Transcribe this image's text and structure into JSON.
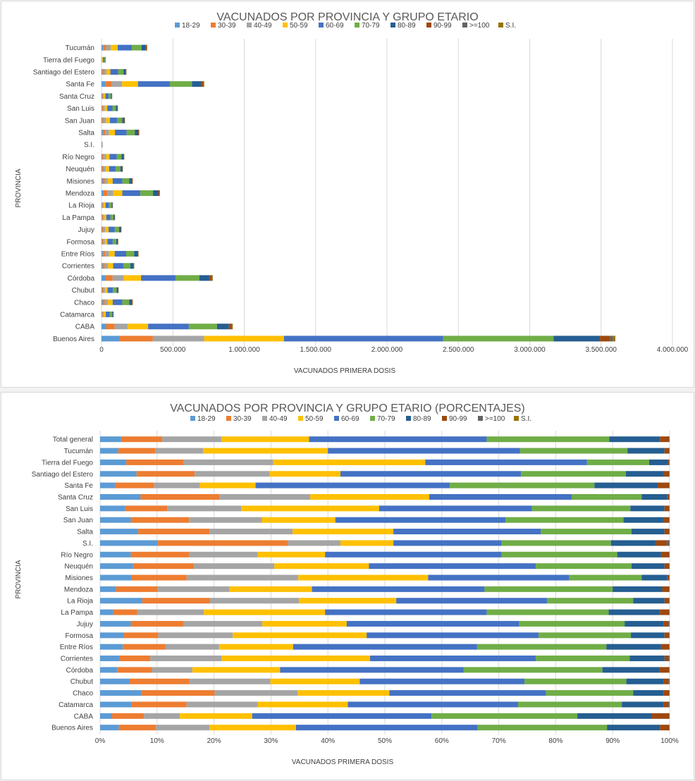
{
  "colors": {
    "series": [
      "#5b9bd5",
      "#ed7d31",
      "#a5a5a5",
      "#ffc000",
      "#4472c4",
      "#70ad47",
      "#255e91",
      "#9e480e",
      "#636363",
      "#997300"
    ],
    "grid": "#d9d9d9",
    "text": "#404040",
    "title": "#595959"
  },
  "chart_data": [
    {
      "type": "bar",
      "orientation": "horizontal",
      "stacked": true,
      "title": "VACUNADOS POR PROVINCIA Y GRUPO ETARIO",
      "xlabel": "VACUNADOS  PRIMERA  DOSIS",
      "ylabel": "PROVINCIA",
      "legend_position": "top",
      "grid": true,
      "xlim": [
        0,
        4000000
      ],
      "xticks": [
        0,
        500000,
        1000000,
        1500000,
        2000000,
        2500000,
        3000000,
        3500000,
        4000000
      ],
      "xtick_labels": [
        "0",
        "500.000",
        "1.000.000",
        "1.500.000",
        "2.000.000",
        "2.500.000",
        "3.000.000",
        "3.500.000",
        "4.000.000"
      ],
      "series_names": [
        "18-29",
        "30-39",
        "40-49",
        "50-59",
        "60-69",
        "70-79",
        "80-89",
        "90-99",
        ">=100",
        "S.I."
      ],
      "categories": [
        "Buenos Aires",
        "CABA",
        "Catamarca",
        "Chaco",
        "Chubut",
        "Córdoba",
        "Corrientes",
        "Entre Ríos",
        "Formosa",
        "Jujuy",
        "La Pampa",
        "La Rioja",
        "Mendoza",
        "Misiones",
        "Neuquén",
        "Río Negro",
        "S.I.",
        "Salta",
        "San Juan",
        "San Luis",
        "Santa Cruz",
        "Santa Fe",
        "Santiago del Estero",
        "Tierra del Fuego",
        "Tucumán"
      ],
      "totals": [
        3600000,
        920000,
        85000,
        220000,
        120000,
        780000,
        230000,
        260000,
        118000,
        140000,
        95000,
        80000,
        410000,
        220000,
        150000,
        160000,
        8000,
        265000,
        165000,
        115000,
        75000,
        720000,
        175000,
        30000,
        320000
      ]
    },
    {
      "type": "bar",
      "orientation": "horizontal",
      "stacked": true,
      "percent": true,
      "title": "VACUNADOS POR PROVINCIA Y GRUPO ETARIO (PORCENTAJES)",
      "xlabel": "VACUNADOS  PRIMERA  DOSIS",
      "ylabel": "PROVINCIA",
      "legend_position": "top",
      "grid": true,
      "xlim": [
        0,
        100
      ],
      "xticks": [
        0,
        10,
        20,
        30,
        40,
        50,
        60,
        70,
        80,
        90,
        100
      ],
      "xtick_labels": [
        "0%",
        "10%",
        "20%",
        "30%",
        "40%",
        "50%",
        "60%",
        "70%",
        "80%",
        "90%",
        "100%"
      ],
      "series_names": [
        "18-29",
        "30-39",
        "40-49",
        "50-59",
        "60-69",
        "70-79",
        "80-89",
        "90-99",
        ">=100",
        "S.I."
      ],
      "categories": [
        "Buenos Aires",
        "CABA",
        "Catamarca",
        "Chaco",
        "Chubut",
        "Córdoba",
        "Corrientes",
        "Entre Ríos",
        "Formosa",
        "Jujuy",
        "La Pampa",
        "La Rioja",
        "Mendoza",
        "Misiones",
        "Neuquén",
        "Río Negro",
        "S.I.",
        "Salta",
        "San Juan",
        "San Luis",
        "Santa Cruz",
        "Santa Fe",
        "Santiago del Estero",
        "Tierra del Fuego",
        "Tucumán",
        "Total general"
      ],
      "cumulative": [
        [
          3.3,
          9.8,
          19.2,
          34.4,
          66.3,
          89.0,
          98.3,
          99.9,
          100,
          100
        ],
        [
          2.1,
          7.7,
          14.0,
          26.7,
          58.2,
          83.8,
          96.9,
          99.9,
          100,
          100
        ],
        [
          5.5,
          15.2,
          27.7,
          43.5,
          73.4,
          91.6,
          98.9,
          99.8,
          100,
          100
        ],
        [
          7.2,
          20.1,
          34.7,
          50.8,
          78.3,
          93.6,
          98.9,
          99.9,
          100,
          100
        ],
        [
          5.2,
          15.7,
          29.9,
          45.6,
          74.5,
          92.4,
          98.9,
          99.8,
          100,
          100
        ],
        [
          3.0,
          9.1,
          16.2,
          31.6,
          63.8,
          88.2,
          98.2,
          99.9,
          100,
          100
        ],
        [
          3.4,
          8.8,
          21.3,
          47.4,
          76.5,
          93.0,
          99.1,
          99.8,
          100,
          100
        ],
        [
          4.0,
          11.5,
          20.9,
          33.9,
          66.2,
          88.9,
          98.5,
          99.9,
          100,
          100
        ],
        [
          4.2,
          10.2,
          23.3,
          46.8,
          77.0,
          93.2,
          99.1,
          99.9,
          100,
          100
        ],
        [
          5.4,
          14.6,
          28.5,
          43.3,
          73.6,
          92.1,
          98.9,
          99.8,
          100,
          100
        ],
        [
          2.3,
          6.5,
          18.2,
          39.5,
          67.9,
          89.3,
          98.3,
          99.9,
          100,
          100
        ],
        [
          7.4,
          19.3,
          34.9,
          52.0,
          78.5,
          93.6,
          99.1,
          99.9,
          100,
          100
        ],
        [
          2.8,
          10.1,
          22.7,
          37.2,
          67.5,
          90.0,
          98.7,
          99.9,
          100,
          100
        ],
        [
          5.5,
          15.2,
          34.8,
          57.6,
          82.4,
          95.1,
          99.6,
          99.9,
          100,
          100
        ],
        [
          5.8,
          16.5,
          30.6,
          47.2,
          76.5,
          93.3,
          99.1,
          99.9,
          100,
          100
        ],
        [
          5.4,
          15.6,
          27.7,
          39.5,
          70.5,
          90.8,
          98.5,
          99.9,
          100,
          100
        ],
        [
          10.1,
          33.0,
          42.2,
          51.5,
          70.5,
          89.7,
          97.6,
          99.5,
          100,
          100
        ],
        [
          6.7,
          19.2,
          33.8,
          51.5,
          77.4,
          93.3,
          99.1,
          99.9,
          100,
          100
        ],
        [
          5.4,
          15.6,
          28.4,
          41.3,
          71.2,
          91.9,
          99.0,
          99.9,
          100,
          100
        ],
        [
          4.4,
          11.8,
          24.8,
          49.0,
          75.8,
          93.1,
          99.1,
          99.9,
          100,
          100
        ],
        [
          7.1,
          21.0,
          36.9,
          57.8,
          82.8,
          95.1,
          99.6,
          99.9,
          100,
          100
        ],
        [
          2.6,
          9.5,
          17.5,
          27.3,
          61.4,
          86.8,
          97.9,
          99.9,
          100,
          100
        ],
        [
          6.4,
          16.6,
          29.8,
          42.2,
          73.9,
          92.3,
          99.0,
          99.9,
          100,
          100
        ],
        [
          4.6,
          14.7,
          30.4,
          57.1,
          85.5,
          96.4,
          99.7,
          99.9,
          100,
          100
        ],
        [
          3.2,
          9.7,
          18.1,
          40.0,
          73.7,
          92.6,
          99.1,
          99.9,
          100,
          100
        ],
        [
          3.7,
          10.9,
          21.3,
          36.7,
          67.9,
          89.4,
          98.3,
          99.9,
          100,
          100
        ]
      ]
    }
  ]
}
